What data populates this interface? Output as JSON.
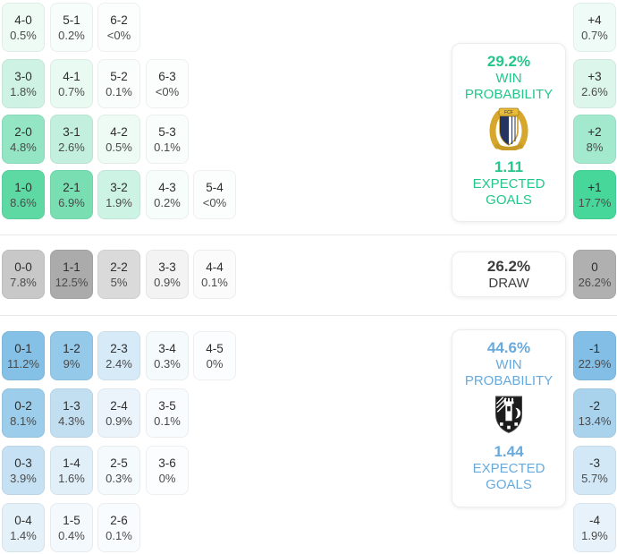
{
  "chart_data": {
    "type": "heatmap",
    "title": "Correct score probability matrix with win probability, expected goals and goal-difference distribution",
    "layout": {
      "grid_on": false,
      "legend": "none"
    },
    "home": {
      "win_probability": "29.2%",
      "win_label_line1": "WIN",
      "win_label_line2": "PROBABILITY",
      "expected_goals": "1.11",
      "goals_label_line1": "EXPECTED",
      "goals_label_line2": "GOALS",
      "crest_icon": "famalicao-crest",
      "accent": "#25c68b"
    },
    "draw": {
      "probability": "26.2%",
      "label": "DRAW",
      "accent": "#3d3d3d"
    },
    "away": {
      "win_probability": "44.6%",
      "win_label_line1": "WIN",
      "win_label_line2": "PROBABILITY",
      "expected_goals": "1.44",
      "goals_label_line1": "EXPECTED",
      "goals_label_line2": "GOALS",
      "crest_icon": "vitoria-guimaraes-crest",
      "accent": "#69aadc"
    },
    "score_grid": {
      "sections": [
        {
          "name": "home-win",
          "rows": [
            [
              {
                "score": "4-0",
                "pct": "0.5%",
                "bg": "#eefbf5"
              },
              {
                "score": "5-1",
                "pct": "0.2%",
                "bg": "#f7fdfb"
              },
              {
                "score": "6-2",
                "pct": "<0%",
                "bg": "#fcfefd"
              }
            ],
            [
              {
                "score": "3-0",
                "pct": "1.8%",
                "bg": "#cef3e5"
              },
              {
                "score": "4-1",
                "pct": "0.7%",
                "bg": "#e9faf3"
              },
              {
                "score": "5-2",
                "pct": "0.1%",
                "bg": "#f9fdfc"
              },
              {
                "score": "6-3",
                "pct": "<0%",
                "bg": "#fcfefd"
              }
            ],
            [
              {
                "score": "2-0",
                "pct": "4.8%",
                "bg": "#93e5c4"
              },
              {
                "score": "3-1",
                "pct": "2.6%",
                "bg": "#c3f0de"
              },
              {
                "score": "4-2",
                "pct": "0.5%",
                "bg": "#eefbf5"
              },
              {
                "score": "5-3",
                "pct": "0.1%",
                "bg": "#f9fdfc"
              }
            ],
            [
              {
                "score": "1-0",
                "pct": "8.6%",
                "bg": "#5fd9a4"
              },
              {
                "score": "2-1",
                "pct": "6.9%",
                "bg": "#79dfb3"
              },
              {
                "score": "3-2",
                "pct": "1.9%",
                "bg": "#cdf3e5"
              },
              {
                "score": "4-3",
                "pct": "0.2%",
                "bg": "#f7fdfb"
              },
              {
                "score": "5-4",
                "pct": "<0%",
                "bg": "#fcfefd"
              }
            ]
          ]
        },
        {
          "name": "draw",
          "rows": [
            [
              {
                "score": "0-0",
                "pct": "7.8%",
                "bg": "#c8c8c8"
              },
              {
                "score": "1-1",
                "pct": "12.5%",
                "bg": "#ababab"
              },
              {
                "score": "2-2",
                "pct": "5%",
                "bg": "#dadada"
              },
              {
                "score": "3-3",
                "pct": "0.9%",
                "bg": "#f3f3f3"
              },
              {
                "score": "4-4",
                "pct": "0.1%",
                "bg": "#fbfbfb"
              }
            ]
          ]
        },
        {
          "name": "away-win",
          "rows": [
            [
              {
                "score": "0-1",
                "pct": "11.2%",
                "bg": "#85c0e6"
              },
              {
                "score": "1-2",
                "pct": "9%",
                "bg": "#95c9e9"
              },
              {
                "score": "2-3",
                "pct": "2.4%",
                "bg": "#d6eaf7"
              },
              {
                "score": "3-4",
                "pct": "0.3%",
                "bg": "#f5fafd"
              },
              {
                "score": "4-5",
                "pct": "0%",
                "bg": "#fcfdfe"
              }
            ],
            [
              {
                "score": "0-2",
                "pct": "8.1%",
                "bg": "#9ccdea"
              },
              {
                "score": "1-3",
                "pct": "4.3%",
                "bg": "#c2dff2"
              },
              {
                "score": "2-4",
                "pct": "0.9%",
                "bg": "#ebf4fb"
              },
              {
                "score": "3-5",
                "pct": "0.1%",
                "bg": "#f9fcfe"
              }
            ],
            [
              {
                "score": "0-3",
                "pct": "3.9%",
                "bg": "#c6e1f3"
              },
              {
                "score": "1-4",
                "pct": "1.6%",
                "bg": "#e1eff9"
              },
              {
                "score": "2-5",
                "pct": "0.3%",
                "bg": "#f5fafd"
              },
              {
                "score": "3-6",
                "pct": "0%",
                "bg": "#fcfdfe"
              }
            ],
            [
              {
                "score": "0-4",
                "pct": "1.4%",
                "bg": "#e4f1f9"
              },
              {
                "score": "1-5",
                "pct": "0.4%",
                "bg": "#f4f9fd"
              },
              {
                "score": "2-6",
                "pct": "0.1%",
                "bg": "#f9fcfe"
              }
            ]
          ]
        }
      ]
    },
    "goal_difference_column": [
      {
        "diff": "+4",
        "pct": "0.7%",
        "bg": "#effbf6"
      },
      {
        "diff": "+3",
        "pct": "2.6%",
        "bg": "#ddf6eb"
      },
      {
        "diff": "+2",
        "pct": "8%",
        "bg": "#a3e9ce"
      },
      {
        "diff": "+1",
        "pct": "17.7%",
        "bg": "#48d79b"
      },
      {
        "diff": "0",
        "pct": "26.2%",
        "bg": "#b0b0b0"
      },
      {
        "diff": "-1",
        "pct": "22.9%",
        "bg": "#82bee5"
      },
      {
        "diff": "-2",
        "pct": "13.4%",
        "bg": "#a9d3ed"
      },
      {
        "diff": "-3",
        "pct": "5.7%",
        "bg": "#d2e8f6"
      },
      {
        "diff": "-4",
        "pct": "1.9%",
        "bg": "#e7f2fa"
      }
    ]
  }
}
